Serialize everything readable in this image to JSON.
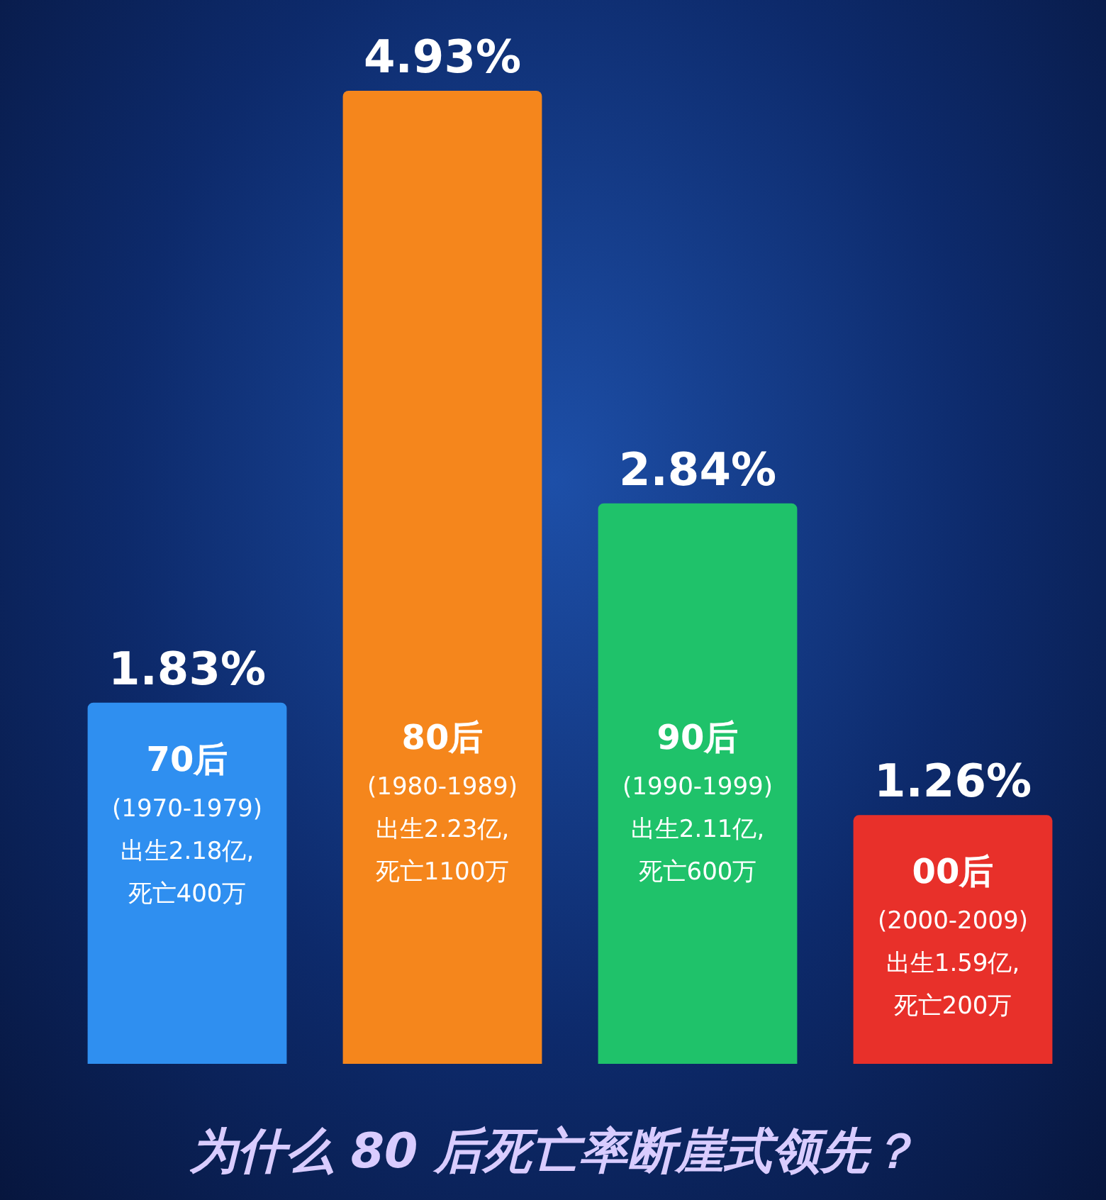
{
  "chart_data": {
    "type": "bar",
    "title": "为什么 80 后死亡率断崖式领先？",
    "categories": [
      "70后",
      "80后",
      "90后",
      "00后"
    ],
    "values": [
      1.83,
      4.93,
      2.84,
      1.26
    ],
    "colors": [
      "#2f8ff0",
      "#f5861c",
      "#1fc26a",
      "#e8302a"
    ],
    "value_labels": [
      "1.83%",
      "4.93%",
      "2.84%",
      "1.26%"
    ],
    "annotations": [
      "(1970-1979)\n出生2.18亿,\n死亡400万",
      "(1980-1989)\n出生2.23亿,\n死亡1100万",
      "(1990-1999)\n出生2.11亿,\n死亡600万",
      "(2000-2009)\n出生1.59亿,\n死亡200万"
    ]
  }
}
